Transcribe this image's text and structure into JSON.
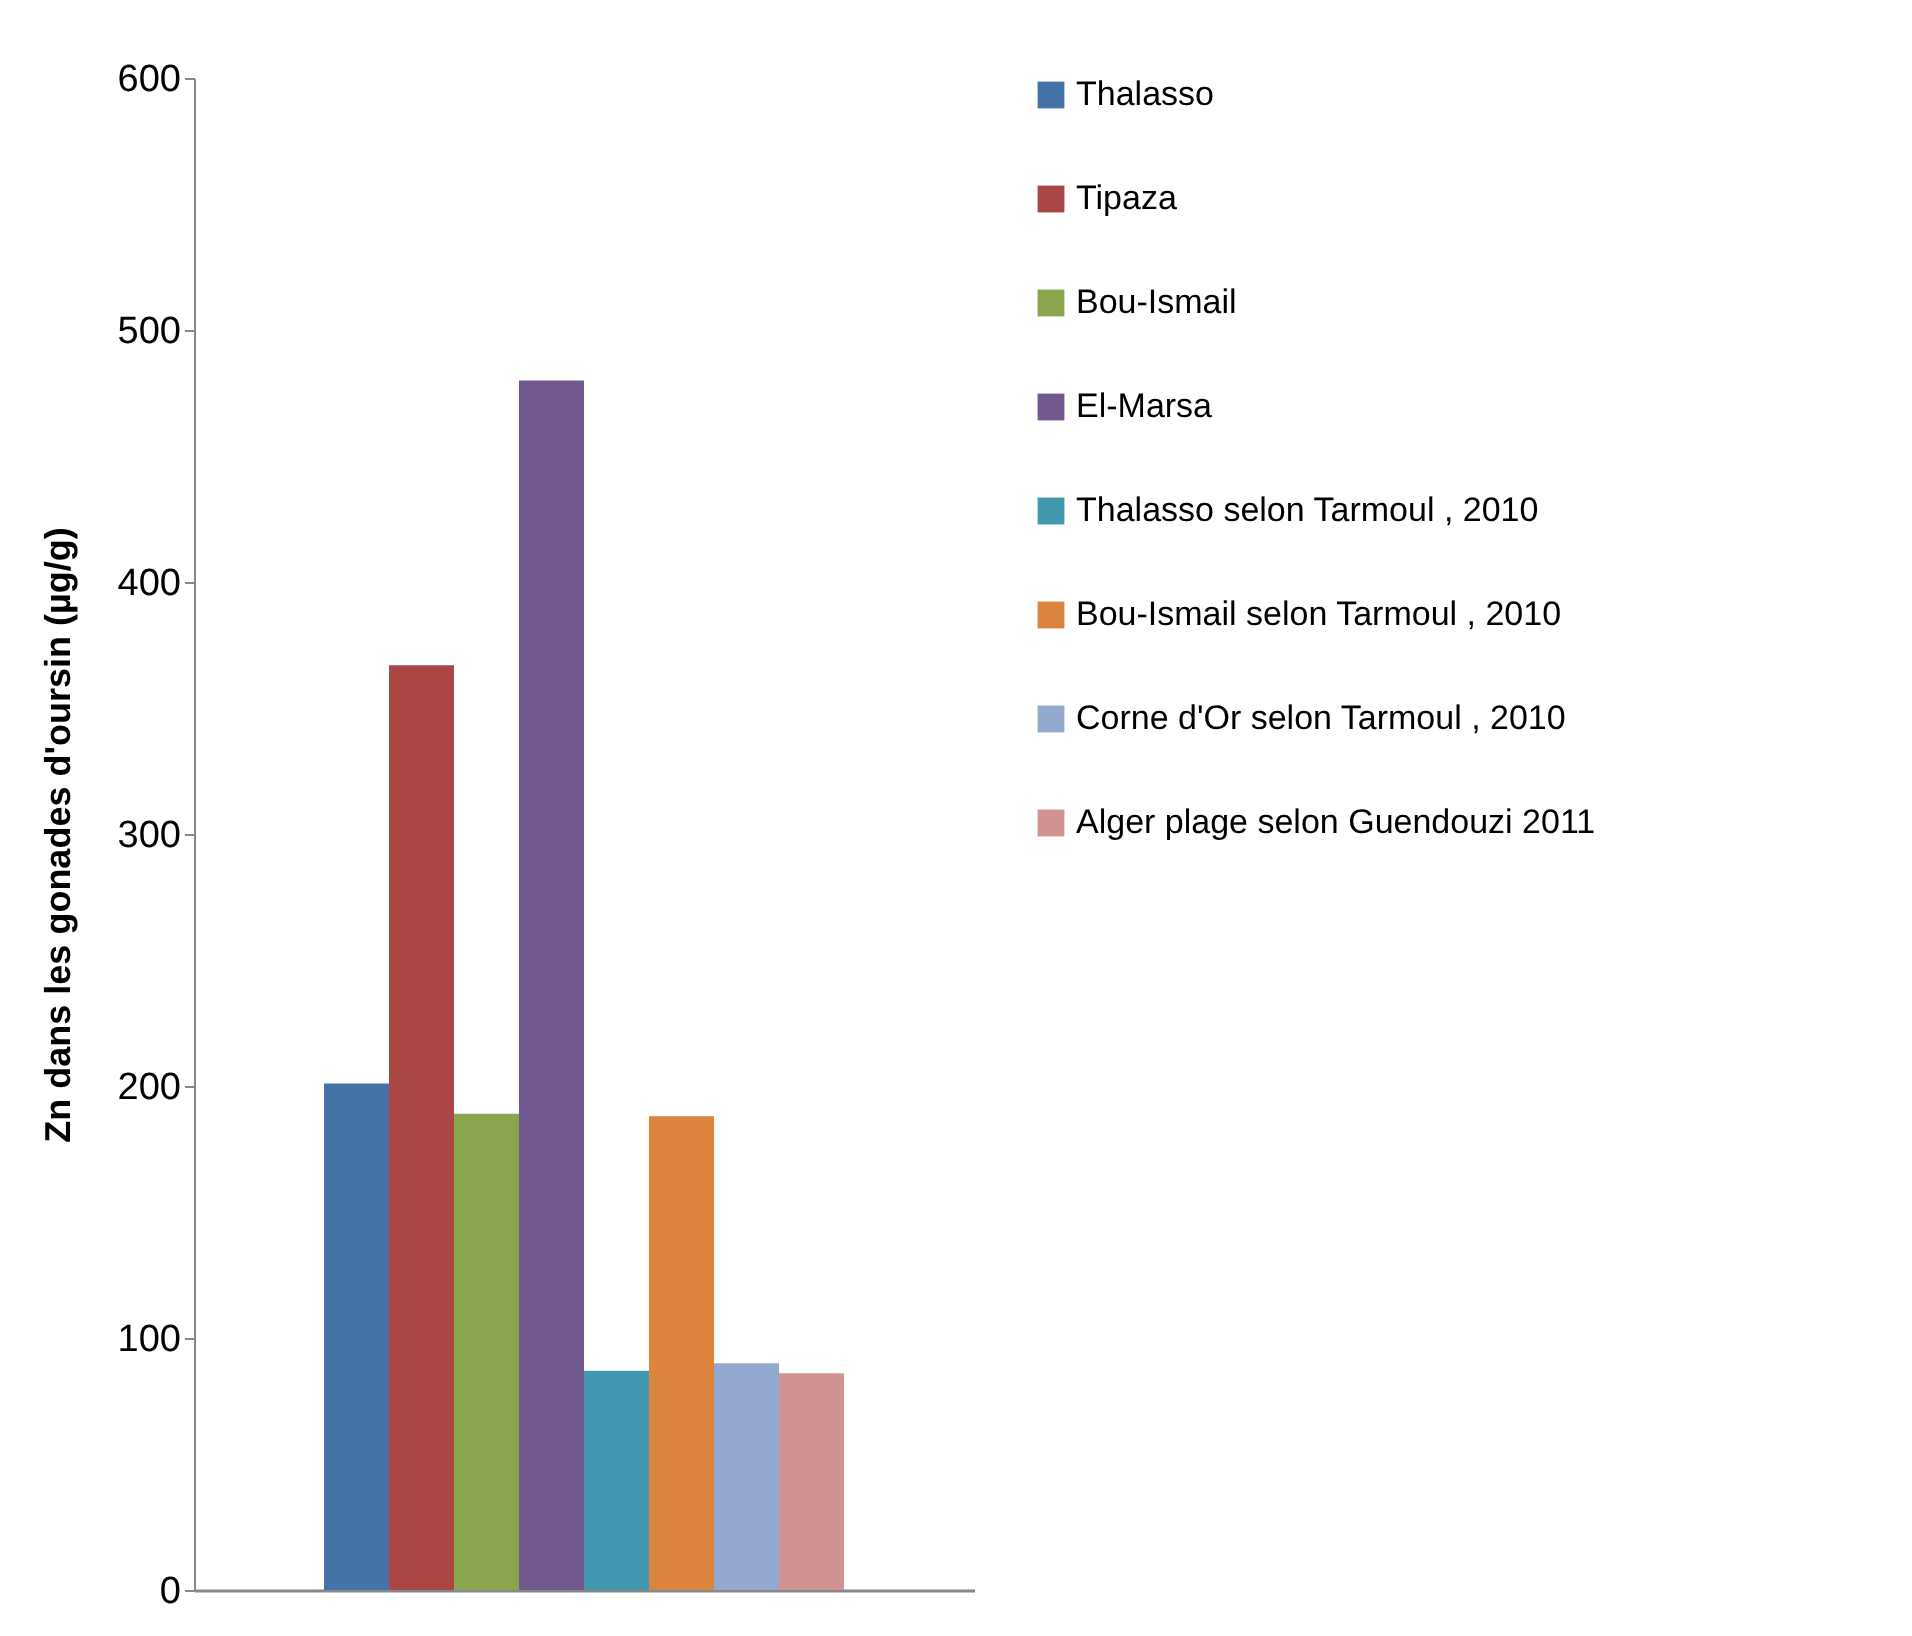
{
  "chart_data": {
    "type": "bar",
    "categories": [
      null
    ],
    "ylabel": "Zn dans les gonades d'oursin (µg/g)",
    "ylim": [
      0,
      600
    ],
    "yticks": [
      0,
      100,
      200,
      300,
      400,
      500,
      600
    ],
    "grid": false,
    "legend": "right",
    "tick_labels": "y",
    "series": [
      {
        "name": "Thalasso",
        "color": "#4572a7",
        "values": [
          201
        ]
      },
      {
        "name": "Tipaza",
        "color": "#aa4643",
        "values": [
          367
        ]
      },
      {
        "name": "Bou-Ismail",
        "color": "#89a54e",
        "values": [
          189
        ]
      },
      {
        "name": "El-Marsa",
        "color": "#71588f",
        "values": [
          480
        ]
      },
      {
        "name": "Thalasso selon Tarmoul , 2010",
        "color": "#4198af",
        "values": [
          87
        ]
      },
      {
        "name": "Bou-Ismail selon Tarmoul , 2010",
        "color": "#db843d",
        "values": [
          188
        ]
      },
      {
        "name": "Corne d'Or selon Tarmoul , 2010",
        "color": "#93a9cf",
        "values": [
          90
        ]
      },
      {
        "name": "Alger plage selon Guendouzi 2011",
        "color": "#d19392",
        "values": [
          86
        ]
      }
    ]
  }
}
